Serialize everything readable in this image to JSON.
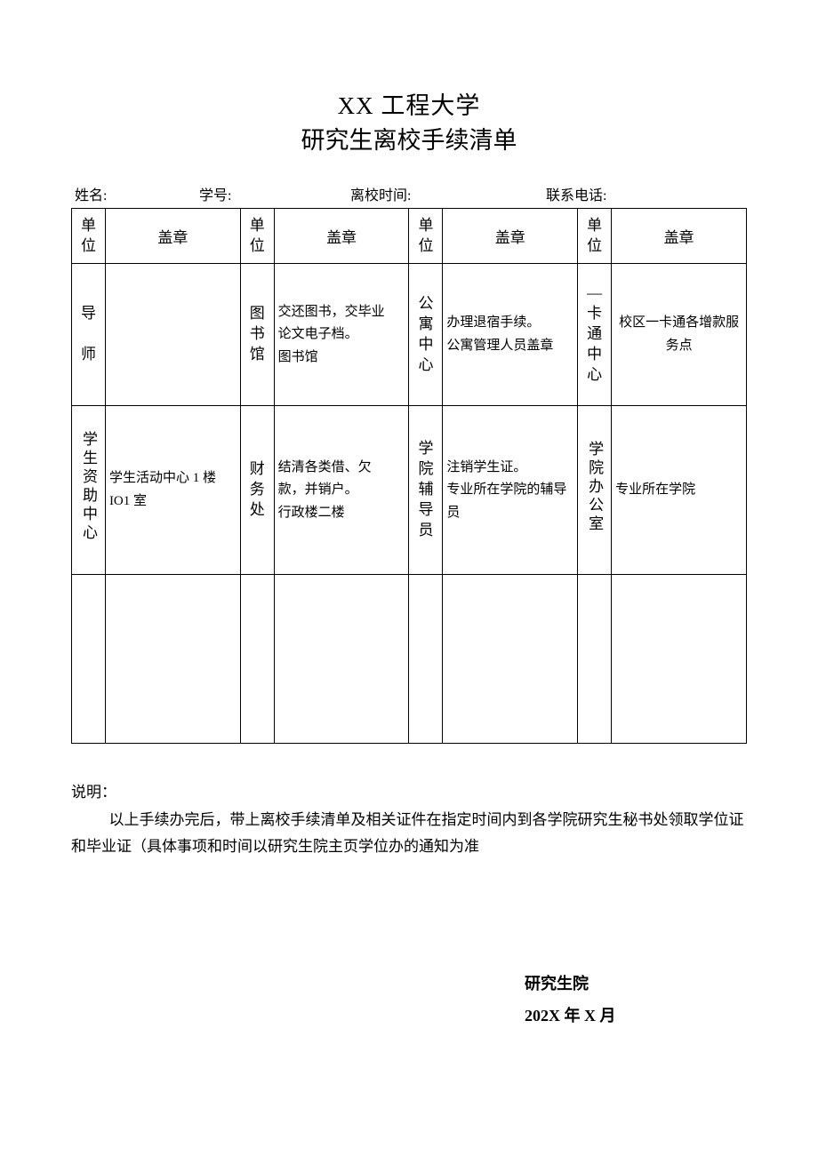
{
  "title": {
    "university": "XX 工程大学",
    "subtitle": "研究生离校手续清单"
  },
  "infoRow": {
    "name": "姓名:",
    "sno": "学号:",
    "time": "离校时间:",
    "tel": "联系电话:"
  },
  "headers": {
    "unit": "单\n位",
    "stamp": "盖章"
  },
  "cells": {
    "r1": {
      "u1": "导\n\n师",
      "s1": "",
      "u2": "图\n书\n馆",
      "s2": "交还图书，交毕业\n论文电子档。\n图书馆",
      "u3": "公寓\n中心",
      "s3": "办理退宿手续。\n公寓管理人员盖章",
      "u4": "—\n卡\n通\n中\n心",
      "s4": "校区一卡通各增款服务点"
    },
    "r2": {
      "u1": "学生资助中心",
      "s1": "学生活动中心 1 楼\nIO1 室",
      "u2": "财\n务\n处",
      "s2": "结清各类借、欠\n款，并销户。\n行政楼二楼",
      "u3": "学院\n辅导\n员",
      "s3": "注销学生证。\n专业所在学院的辅导员",
      "u4": "学院办公室",
      "s4": "专业所在学院"
    }
  },
  "notes": {
    "lead": "说明：",
    "body": "以上手续办完后，带上离校手续清单及相关证件在指定时间内到各学院研究生秘书处领取学位证和毕业证（具体事项和时间以研究生院主页学位办的通知为准"
  },
  "signature": {
    "org": "研究生院",
    "date": "202X 年 X 月"
  }
}
